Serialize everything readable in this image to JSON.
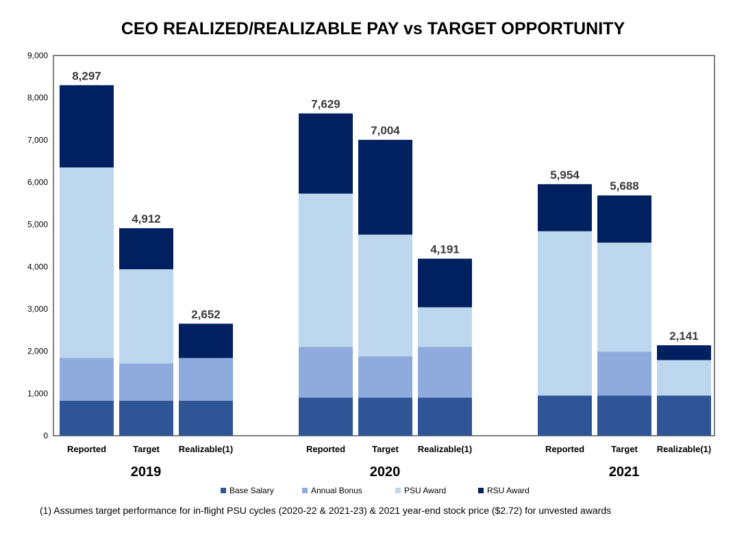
{
  "chart_data": {
    "type": "bar",
    "stacked": true,
    "title": "CEO REALIZED/REALIZABLE PAY vs TARGET OPPORTUNITY",
    "ylim": [
      0,
      9000
    ],
    "yticks": [
      "0",
      "1,000",
      "2,000",
      "3,000",
      "4,000",
      "5,000",
      "6,000",
      "7,000",
      "8,000",
      "9,000"
    ],
    "yticks_values": [
      0,
      1000,
      2000,
      3000,
      4000,
      5000,
      6000,
      7000,
      8000,
      9000
    ],
    "groups": [
      {
        "year": "2019",
        "bars": [
          {
            "label": "Reported",
            "total": "8,297",
            "values": [
              830,
              1010,
              4510,
              1947
            ]
          },
          {
            "label": "Target",
            "total": "4,912",
            "values": [
              830,
              880,
              2230,
              972
            ]
          },
          {
            "label": "Realizable(1)",
            "total": "2,652",
            "values": [
              830,
              1010,
              0,
              812
            ]
          }
        ]
      },
      {
        "year": "2020",
        "bars": [
          {
            "label": "Reported",
            "total": "7,629",
            "values": [
              900,
              1200,
              3630,
              1899
            ]
          },
          {
            "label": "Target",
            "total": "7,004",
            "values": [
              900,
              980,
              2880,
              2244
            ]
          },
          {
            "label": "Realizable(1)",
            "total": "4,191",
            "values": [
              900,
              1200,
              940,
              1151
            ]
          }
        ]
      },
      {
        "year": "2021",
        "bars": [
          {
            "label": "Reported",
            "total": "5,954",
            "values": [
              950,
              0,
              3890,
              1114
            ]
          },
          {
            "label": "Target",
            "total": "5,688",
            "values": [
              950,
              1040,
              2580,
              1118
            ]
          },
          {
            "label": "Realizable(1)",
            "total": "2,141",
            "values": [
              950,
              0,
              840,
              351
            ]
          }
        ]
      }
    ],
    "series": [
      {
        "name": "Base Salary",
        "color": "#2f5597"
      },
      {
        "name": "Annual Bonus",
        "color": "#8faadc"
      },
      {
        "name": "PSU Award",
        "color": "#bdd7ee"
      },
      {
        "name": "RSU Award",
        "color": "#002060"
      }
    ],
    "footnote": "(1) Assumes target performance for in-flight PSU cycles (2020-22 & 2021-23) & 2021 year-end stock price ($2.72) for unvested awards"
  }
}
